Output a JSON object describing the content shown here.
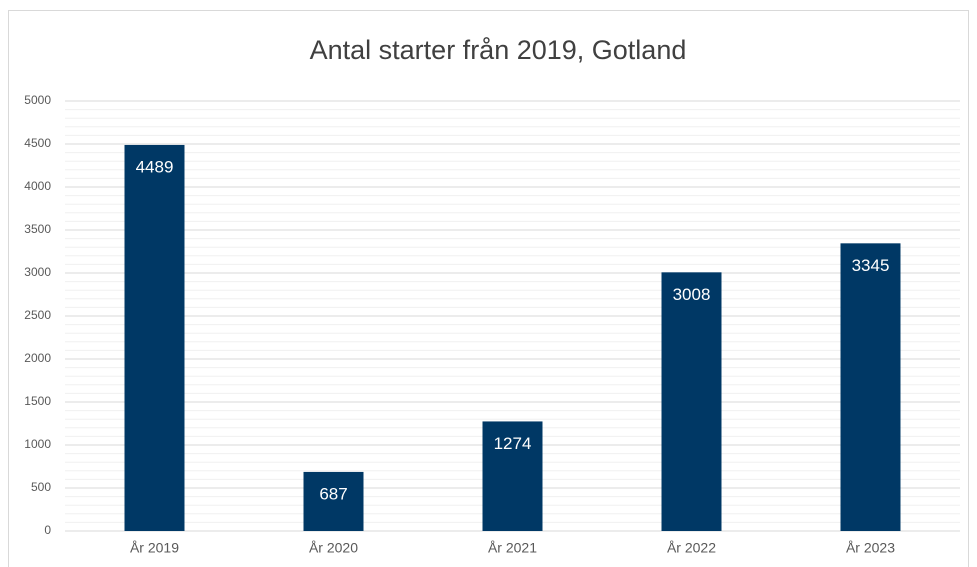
{
  "chart_data": {
    "type": "bar",
    "title": "Antal starter från 2019, Gotland",
    "categories": [
      "År 2019",
      "År 2020",
      "År 2021",
      "År 2022",
      "År 2023"
    ],
    "values": [
      4489,
      687,
      1274,
      3008,
      3345
    ],
    "color": "#003865",
    "ylim": [
      0,
      5000
    ],
    "yticks": [
      0,
      500,
      1000,
      1500,
      2000,
      2500,
      3000,
      3500,
      4000,
      4500,
      5000
    ],
    "grid": true,
    "minor_grid": true
  }
}
